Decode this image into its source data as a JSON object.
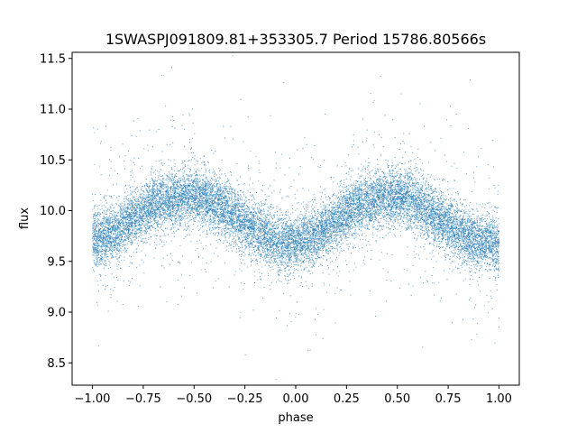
{
  "chart_data": {
    "type": "scatter",
    "title": "1SWASPJ091809.81+353305.7 Period 15786.80566s",
    "xlabel": "phase",
    "ylabel": "flux",
    "xlim": [
      -1.1,
      1.1
    ],
    "ylim": [
      8.28,
      11.56
    ],
    "x_ticks": [
      -1.0,
      -0.75,
      -0.5,
      -0.25,
      0.0,
      0.25,
      0.5,
      0.75,
      1.0
    ],
    "x_tick_labels": [
      "−1.00",
      "−0.75",
      "−0.50",
      "−0.25",
      "0.00",
      "0.25",
      "0.50",
      "0.75",
      "1.00"
    ],
    "y_ticks": [
      8.5,
      9.0,
      9.5,
      10.0,
      10.5,
      11.0,
      11.5
    ],
    "y_tick_labels": [
      "8.5",
      "9.0",
      "9.5",
      "10.0",
      "10.5",
      "11.0",
      "11.5"
    ],
    "grid": false,
    "legend": "none",
    "marker_color": "#1f77b4",
    "series": [
      {
        "x": [
          -1.0,
          -0.9,
          -0.8,
          -0.7,
          -0.6,
          -0.5,
          -0.4,
          -0.3,
          -0.2,
          -0.1,
          0.0,
          0.1,
          0.2,
          0.3,
          0.4,
          0.5,
          0.6,
          0.7,
          0.8,
          0.9,
          1.0
        ],
        "y": [
          9.72,
          9.78,
          9.92,
          10.05,
          10.12,
          10.14,
          10.08,
          9.95,
          9.8,
          9.7,
          9.68,
          9.76,
          9.9,
          10.04,
          10.12,
          10.15,
          10.07,
          9.93,
          9.79,
          9.7,
          9.67
        ],
        "point_count_approx": 16000,
        "scatter_sigma": 0.14
      }
    ]
  }
}
